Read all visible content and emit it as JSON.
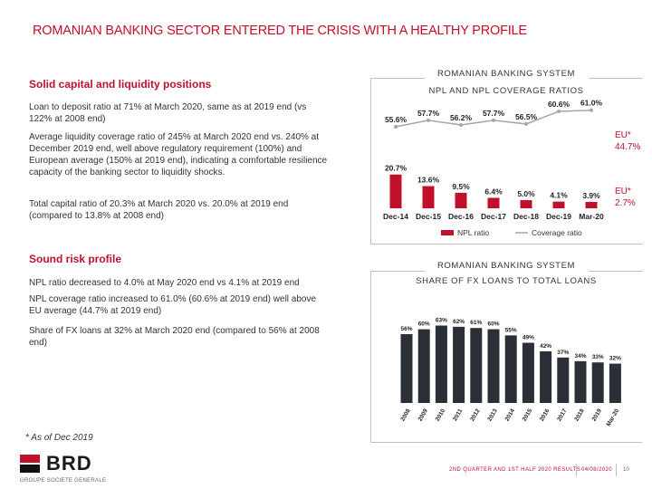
{
  "title": "ROMANIAN BANKING SECTOR ENTERED THE CRISIS WITH A HEALTHY PROFILE",
  "left": {
    "section1": {
      "heading": "Solid capital and liquidity positions",
      "p1": "Loan to deposit ratio at 71% at March 2020, same as at 2019 end (vs 122% at 2008 end)",
      "p2": "Average liquidity coverage ratio of 245% at March 2020 end vs. 240% at December 2019 end, well above regulatory requirement (100%) and European average (150% at 2019 end), indicating a comfortable resilience capacity of the banking sector to liquidity shocks.",
      "p3": "Total capital ratio of 20.3% at March 2020 vs. 20.0% at 2019 end (compared to 13.8% at 2008 end)"
    },
    "section2": {
      "heading": "Sound risk profile",
      "p1": "NPL ratio decreased to 4.0% at May 2020 end vs 4.1% at 2019 end",
      "p2": "NPL coverage ratio increased to 61.0% (60.6% at 2019 end) well above EU average (44.7% at 2019 end)",
      "p3": "Share of FX loans at 32% at March 2020 end (compared to 56% at 2008 end)"
    },
    "footnote": "* As of Dec 2019"
  },
  "chart_data": [
    {
      "type": "bar",
      "title_line1": "ROMANIAN BANKING SYSTEM",
      "title_line2": "NPL AND NPL COVERAGE RATIOS",
      "categories": [
        "Dec-14",
        "Dec-15",
        "Dec-16",
        "Dec-17",
        "Dec-18",
        "Dec-19",
        "Mar-20"
      ],
      "series": [
        {
          "name": "NPL ratio",
          "kind": "bar",
          "color": "#c0102b",
          "values": [
            20.7,
            13.6,
            9.5,
            6.4,
            5.0,
            4.1,
            3.9
          ],
          "labels": [
            "20.7%",
            "13.6%",
            "9.5%",
            "6.4%",
            "5.0%",
            "4.1%",
            "3.9%"
          ]
        },
        {
          "name": "Coverage ratio",
          "kind": "line",
          "color": "#a6a6a6",
          "values": [
            55.6,
            57.7,
            56.2,
            57.7,
            56.5,
            60.6,
            61.0
          ],
          "labels": [
            "55.6%",
            "57.7%",
            "56.2%",
            "57.7%",
            "56.5%",
            "60.6%",
            "61.0%"
          ]
        }
      ],
      "eu_coverage": {
        "label": "EU*",
        "value": "44.7%"
      },
      "eu_npl": {
        "label": "EU*",
        "value": "2.7%"
      }
    },
    {
      "type": "bar",
      "title_line1": "ROMANIAN BANKING SYSTEM",
      "title_line2": "SHARE OF FX LOANS TO TOTAL LOANS",
      "categories": [
        "2008",
        "2009",
        "2010",
        "2011",
        "2012",
        "2013",
        "2014",
        "2015",
        "2016",
        "2017",
        "2018",
        "2019",
        "Mar-20"
      ],
      "values": [
        56,
        60,
        63,
        62,
        61,
        60,
        55,
        49,
        42,
        37,
        34,
        33,
        32
      ],
      "labels": [
        "56%",
        "60%",
        "63%",
        "62%",
        "61%",
        "60%",
        "55%",
        "49%",
        "42%",
        "37%",
        "34%",
        "33%",
        "32%"
      ],
      "bar_color": "#2b2f38"
    }
  ],
  "footer": {
    "brand": "BRD",
    "brand_sub": "GROUPE SOCIETE GENERALE",
    "results_text": "2ND QUARTER AND 1ST HALF 2020 RESULTS",
    "date": "04/08/2020",
    "page": "10"
  }
}
